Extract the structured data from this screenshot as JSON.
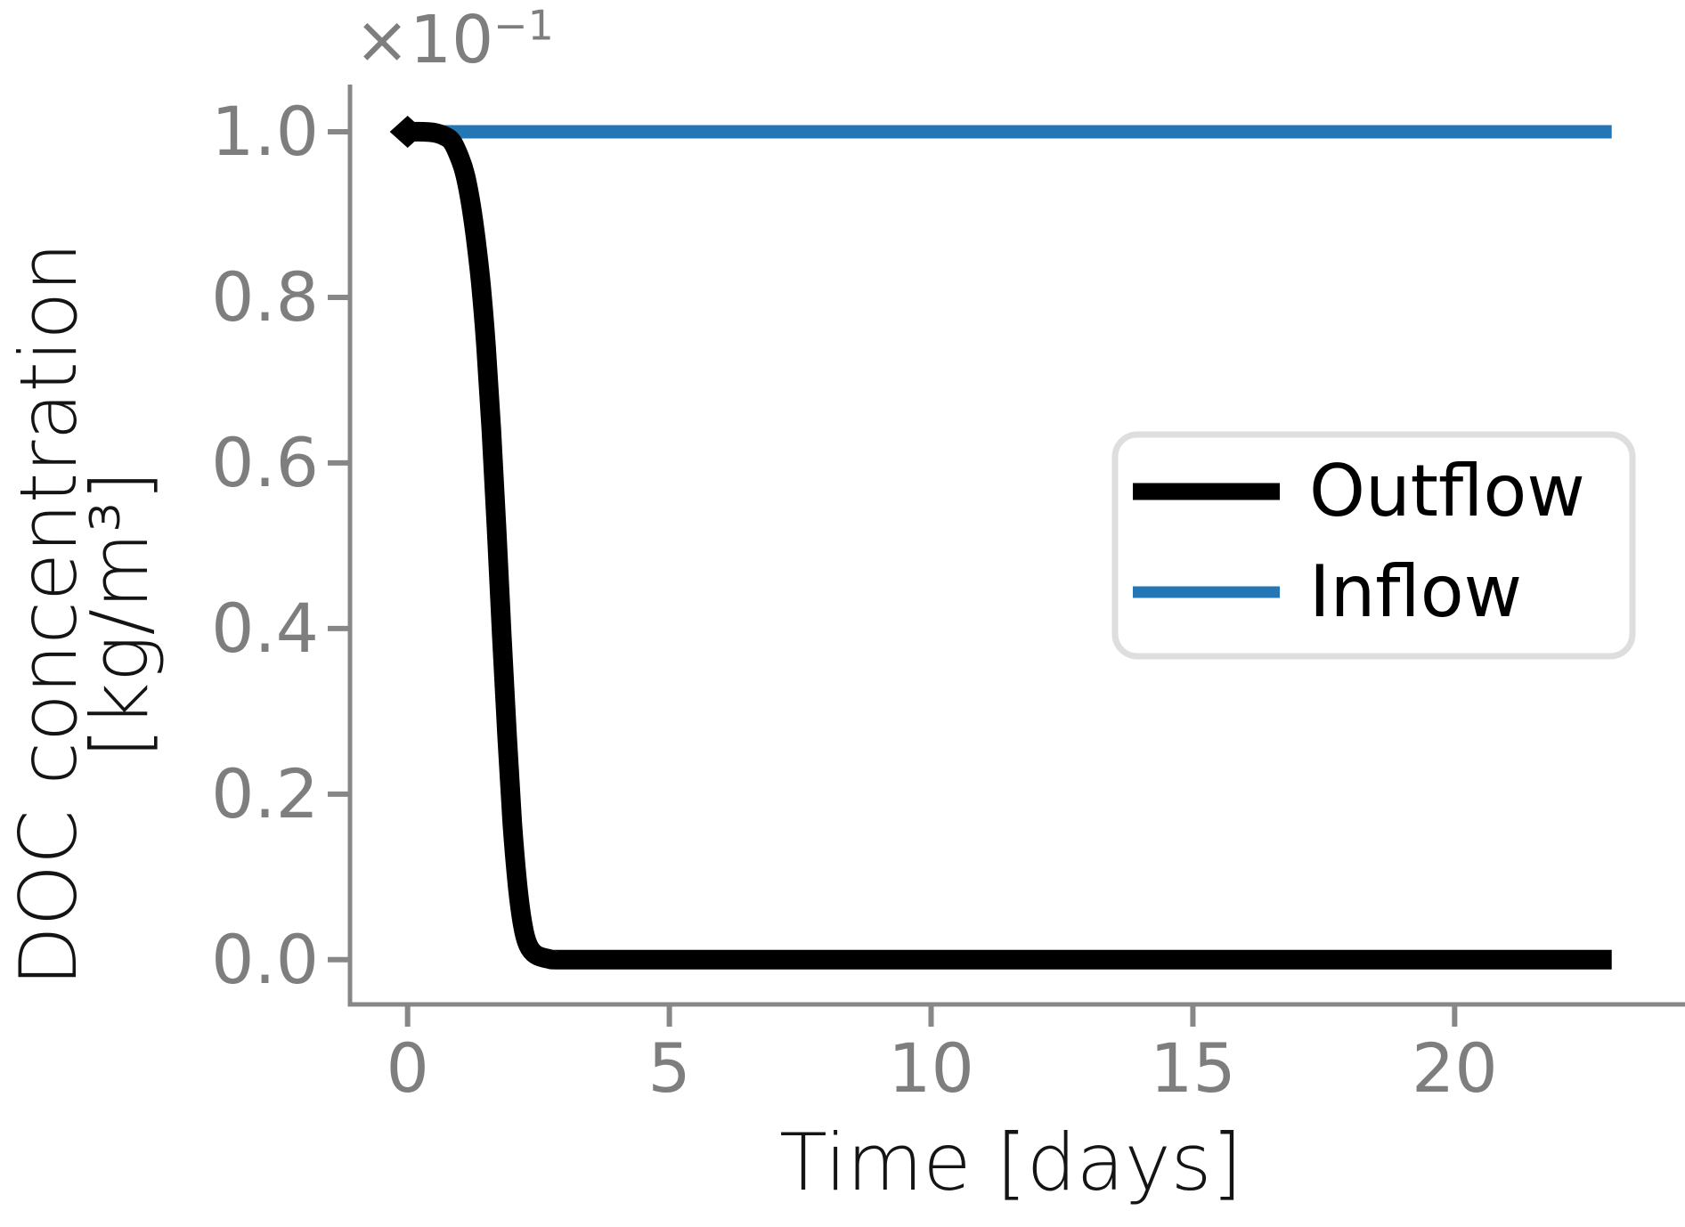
{
  "figure": {
    "background": "#ffffff"
  },
  "colors": {
    "axis_spine": "#878787",
    "tick_mark": "#878787",
    "tick_label": "#7e7e7e",
    "axis_label": "#141414",
    "legend_text": "#000000",
    "legend_border": "#dedede",
    "legend_background": "#ffffff",
    "outflow": "#000000",
    "inflow": "#2277b4"
  },
  "chart_data": {
    "type": "line",
    "title": "",
    "xlabel": "Time [days]",
    "ylabel_lines": [
      "DOC concentration",
      "[kg/m³]"
    ],
    "ylabel_full": "DOC concentration [kg/m³]",
    "y_offset": {
      "base": "×10",
      "exp": "−1"
    },
    "y_offset_meaning": "y tick values are multiplied by 1e-1 (data in kg/m³)",
    "xlim": [
      -1.1,
      24.4
    ],
    "ylim": [
      -0.054,
      1.057
    ],
    "xticks": [
      0,
      5,
      10,
      15,
      20
    ],
    "xtick_labels": [
      "0",
      "5",
      "10",
      "15",
      "20"
    ],
    "yticks": [
      0.0,
      0.2,
      0.4,
      0.6,
      0.8,
      1.0
    ],
    "ytick_labels": [
      "0.0",
      "0.2",
      "0.4",
      "0.6",
      "0.8",
      "1.0"
    ],
    "grid": false,
    "legend": {
      "position": "center-right",
      "entries": [
        {
          "label": "Outflow",
          "color": "#000000",
          "swatch_thickness": 19
        },
        {
          "label": "Inflow",
          "color": "#2277b4",
          "swatch_thickness": 13
        }
      ]
    },
    "series": [
      {
        "name": "Outflow",
        "color": "#000000",
        "line_width": 22,
        "start_marker": "diamond",
        "points": [
          [
            0,
            1.0
          ],
          [
            0.3,
            1.0
          ],
          [
            0.5,
            0.999
          ],
          [
            0.7,
            0.995
          ],
          [
            0.85,
            0.988
          ],
          [
            1.0,
            0.968
          ],
          [
            1.1,
            0.948
          ],
          [
            1.2,
            0.916
          ],
          [
            1.3,
            0.872
          ],
          [
            1.4,
            0.816
          ],
          [
            1.5,
            0.74
          ],
          [
            1.6,
            0.64
          ],
          [
            1.7,
            0.52
          ],
          [
            1.8,
            0.39
          ],
          [
            1.9,
            0.27
          ],
          [
            2.0,
            0.165
          ],
          [
            2.1,
            0.09
          ],
          [
            2.2,
            0.042
          ],
          [
            2.3,
            0.018
          ],
          [
            2.45,
            0.006
          ],
          [
            2.7,
            0.001
          ],
          [
            3.0,
            0.0
          ],
          [
            5,
            0.0
          ],
          [
            10,
            0.0
          ],
          [
            15,
            0.0
          ],
          [
            20,
            0.0
          ],
          [
            23,
            0.0
          ]
        ]
      },
      {
        "name": "Inflow",
        "color": "#2277b4",
        "line_width": 15,
        "start_marker": null,
        "points": [
          [
            0,
            1.0
          ],
          [
            23,
            1.0
          ]
        ]
      }
    ]
  }
}
